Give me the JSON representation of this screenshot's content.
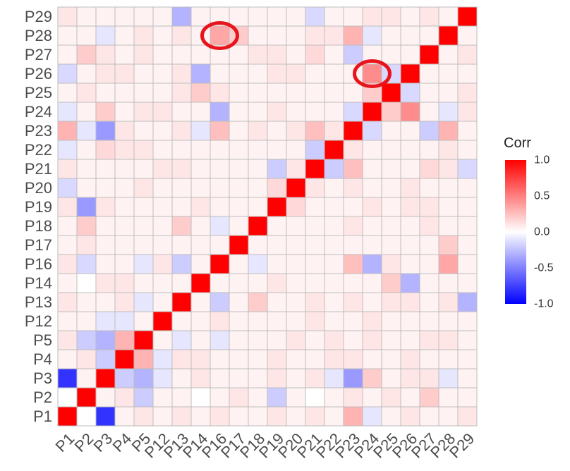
{
  "chart_data": {
    "type": "heatmap",
    "title": "",
    "xlabel": "",
    "ylabel": "",
    "variables": [
      "P1",
      "P2",
      "P3",
      "P4",
      "P5",
      "P12",
      "P13",
      "P14",
      "P16",
      "P17",
      "P18",
      "P19",
      "P20",
      "P21",
      "P22",
      "P23",
      "P24",
      "P25",
      "P26",
      "P27",
      "P28",
      "P29"
    ],
    "x_ticks": [
      "P1",
      "P2",
      "P3",
      "P4",
      "P5",
      "P12",
      "P13",
      "P14",
      "P16",
      "P17",
      "P18",
      "P19",
      "P20",
      "P21",
      "P22",
      "P23",
      "P24",
      "P25",
      "P26",
      "P27",
      "P28",
      "P29"
    ],
    "y_ticks": [
      "P1",
      "P2",
      "P3",
      "P4",
      "P5",
      "P12",
      "P13",
      "P14",
      "P16",
      "P17",
      "P18",
      "P19",
      "P20",
      "P21",
      "P22",
      "P23",
      "P24",
      "P25",
      "P26",
      "P27",
      "P28",
      "P29"
    ],
    "values": [
      [
        1.0,
        0.0,
        -0.8,
        0.05,
        0.1,
        0.05,
        0.1,
        0.05,
        0.1,
        0.05,
        0.05,
        0.1,
        0.05,
        0.1,
        0.05,
        0.3,
        -0.1,
        0.05,
        0.1,
        0.05,
        0.05,
        0.1
      ],
      [
        0.0,
        1.0,
        0.05,
        0.1,
        -0.2,
        0.05,
        0.05,
        0.0,
        0.05,
        0.1,
        0.05,
        -0.2,
        0.05,
        0.0,
        0.05,
        0.1,
        0.05,
        0.1,
        0.05,
        0.2,
        0.05,
        0.05
      ],
      [
        -0.8,
        0.05,
        1.0,
        -0.2,
        -0.3,
        -0.1,
        0.05,
        0.1,
        0.05,
        0.05,
        0.05,
        0.1,
        0.05,
        0.1,
        -0.1,
        -0.4,
        0.2,
        0.05,
        0.1,
        0.1,
        -0.1,
        0.05
      ],
      [
        0.05,
        0.1,
        -0.2,
        1.0,
        0.3,
        -0.1,
        0.1,
        0.1,
        0.05,
        0.05,
        0.05,
        0.1,
        0.05,
        0.05,
        0.1,
        0.1,
        0.05,
        0.05,
        0.1,
        0.05,
        0.05,
        0.05
      ],
      [
        0.1,
        -0.2,
        -0.3,
        0.3,
        1.0,
        0.05,
        -0.1,
        0.05,
        -0.1,
        0.05,
        0.05,
        0.05,
        0.1,
        0.05,
        0.1,
        0.05,
        0.1,
        0.05,
        0.05,
        0.1,
        0.1,
        0.05
      ],
      [
        0.05,
        0.05,
        -0.1,
        -0.1,
        0.05,
        1.0,
        0.05,
        0.05,
        0.1,
        0.05,
        0.05,
        0.05,
        0.05,
        0.1,
        0.05,
        0.05,
        0.1,
        0.05,
        0.05,
        0.05,
        0.05,
        0.05
      ],
      [
        0.1,
        0.05,
        0.05,
        0.1,
        -0.1,
        0.05,
        1.0,
        0.05,
        -0.2,
        0.05,
        0.2,
        0.05,
        0.05,
        0.1,
        0.05,
        0.1,
        0.05,
        0.1,
        0.1,
        0.05,
        0.1,
        -0.3
      ],
      [
        0.05,
        0.0,
        0.1,
        0.1,
        0.05,
        0.05,
        0.05,
        1.0,
        0.05,
        0.05,
        0.05,
        0.1,
        0.05,
        0.05,
        0.05,
        0.05,
        0.05,
        0.2,
        -0.3,
        0.05,
        0.05,
        0.05
      ],
      [
        0.1,
        -0.15,
        0.05,
        0.05,
        -0.1,
        0.1,
        -0.2,
        0.05,
        1.0,
        0.05,
        -0.1,
        0.05,
        0.05,
        0.05,
        0.05,
        0.25,
        -0.3,
        0.1,
        0.05,
        0.05,
        0.35,
        0.05
      ],
      [
        0.05,
        0.1,
        0.05,
        0.05,
        0.05,
        0.05,
        0.05,
        0.05,
        0.05,
        1.0,
        0.05,
        0.05,
        0.05,
        0.05,
        0.05,
        0.05,
        0.05,
        0.05,
        0.05,
        0.05,
        0.2,
        0.05
      ],
      [
        0.05,
        0.2,
        0.05,
        0.05,
        0.05,
        0.05,
        0.2,
        0.05,
        -0.1,
        0.05,
        1.0,
        0.05,
        0.05,
        0.05,
        0.05,
        0.1,
        0.05,
        0.05,
        0.05,
        0.1,
        0.05,
        0.05
      ],
      [
        0.1,
        -0.4,
        0.1,
        0.05,
        0.05,
        0.05,
        0.05,
        0.1,
        0.05,
        0.05,
        0.05,
        1.0,
        0.15,
        0.05,
        0.05,
        0.05,
        0.1,
        0.05,
        0.1,
        0.1,
        0.05,
        0.05
      ],
      [
        -0.15,
        0.05,
        0.05,
        0.05,
        0.1,
        0.05,
        0.05,
        0.05,
        0.05,
        0.05,
        0.05,
        0.15,
        1.0,
        0.1,
        0.05,
        0.1,
        0.05,
        0.05,
        0.1,
        0.05,
        0.05,
        0.05
      ],
      [
        0.1,
        0.05,
        0.05,
        0.05,
        0.05,
        0.1,
        0.1,
        0.05,
        0.05,
        0.05,
        0.05,
        -0.2,
        0.1,
        1.0,
        -0.2,
        0.25,
        0.05,
        0.05,
        0.05,
        0.15,
        0.1,
        -0.15
      ],
      [
        -0.1,
        0.05,
        0.15,
        0.1,
        0.1,
        0.05,
        0.05,
        0.05,
        0.05,
        0.05,
        0.05,
        0.05,
        0.05,
        -0.2,
        1.0,
        0.1,
        0.05,
        0.05,
        0.05,
        0.05,
        0.1,
        0.05
      ],
      [
        0.3,
        -0.1,
        -0.4,
        0.1,
        0.05,
        0.05,
        0.1,
        -0.1,
        0.25,
        0.05,
        0.1,
        0.05,
        0.1,
        0.25,
        0.1,
        1.0,
        -0.15,
        0.05,
        0.05,
        -0.2,
        0.3,
        0.05
      ],
      [
        -0.1,
        0.05,
        0.2,
        0.05,
        0.1,
        0.1,
        0.05,
        0.05,
        -0.3,
        0.05,
        0.05,
        0.1,
        0.05,
        0.05,
        0.05,
        -0.15,
        1.0,
        0.2,
        0.45,
        0.05,
        -0.1,
        0.1
      ],
      [
        0.05,
        0.1,
        0.05,
        0.05,
        0.05,
        0.05,
        0.1,
        0.2,
        0.1,
        0.05,
        0.05,
        0.05,
        0.05,
        0.05,
        0.05,
        0.05,
        0.2,
        1.0,
        -0.15,
        0.05,
        0.05,
        0.1
      ],
      [
        -0.15,
        0.05,
        0.1,
        0.1,
        0.05,
        0.05,
        0.1,
        -0.3,
        0.05,
        0.05,
        0.05,
        0.1,
        0.1,
        0.05,
        0.05,
        0.05,
        0.45,
        -0.15,
        1.0,
        0.05,
        0.05,
        0.05
      ],
      [
        0.05,
        0.2,
        0.1,
        0.05,
        0.1,
        0.05,
        0.05,
        0.05,
        0.05,
        0.05,
        0.1,
        0.1,
        0.05,
        0.15,
        0.05,
        -0.2,
        0.05,
        0.05,
        0.05,
        1.0,
        0.05,
        0.1
      ],
      [
        0.05,
        0.05,
        -0.1,
        0.05,
        0.1,
        0.05,
        0.1,
        0.05,
        0.35,
        0.2,
        0.05,
        0.05,
        0.05,
        0.1,
        0.1,
        0.3,
        -0.1,
        0.05,
        0.05,
        0.05,
        1.0,
        0.05
      ],
      [
        0.1,
        0.05,
        0.05,
        0.05,
        0.05,
        0.05,
        -0.3,
        0.05,
        0.05,
        0.05,
        0.05,
        0.05,
        0.05,
        -0.15,
        0.05,
        0.05,
        0.1,
        0.1,
        0.05,
        0.1,
        0.05,
        1.0
      ]
    ],
    "value_range": [
      -1.0,
      1.0
    ],
    "color_scale": {
      "low": "#0000ff",
      "mid": "#ffffff",
      "high": "#ff0000"
    },
    "legend": {
      "title": "Corr",
      "placement": "right",
      "ticks": [
        "1.0",
        "0.5",
        "0.0",
        "-0.5",
        "-1.0"
      ],
      "tick_values": [
        1.0,
        0.5,
        0.0,
        -0.5,
        -1.0
      ]
    },
    "grid": true,
    "annotations": [
      {
        "type": "circle",
        "x": "P16",
        "y": "P28",
        "color": "#e8141c"
      },
      {
        "type": "circle",
        "x": "P24",
        "y": "P26",
        "color": "#e8141c"
      }
    ]
  }
}
